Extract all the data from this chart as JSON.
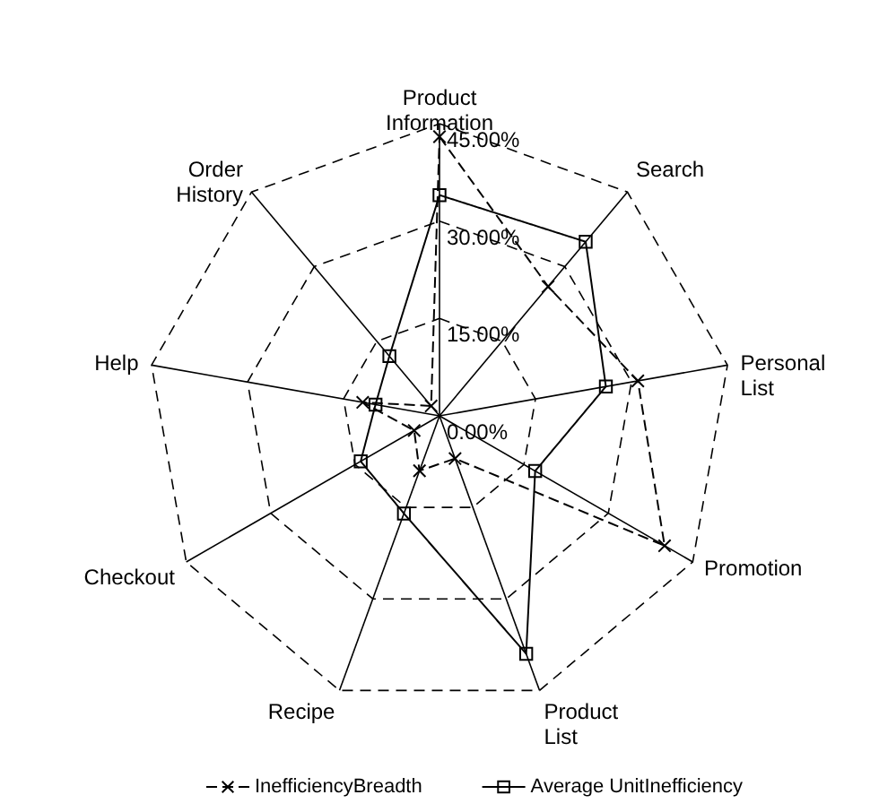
{
  "chart_data": {
    "type": "radar",
    "categories": [
      "Product Information",
      "Search",
      "Personal List",
      "Promotion",
      "Product List",
      "Recipe",
      "Checkout",
      "Help",
      "Order History"
    ],
    "series": [
      {
        "name": "InefficiencyBreadth",
        "color": "#000000",
        "marker": "cross",
        "line_style": "dashed",
        "values": [
          43,
          26,
          31,
          40,
          7,
          9,
          4.5,
          12,
          2
        ]
      },
      {
        "name": "Average UnitInefficiency",
        "color": "#000000",
        "marker": "square",
        "line_style": "solid",
        "values": [
          34,
          35,
          26,
          17,
          39,
          16,
          14,
          10,
          12
        ]
      }
    ],
    "ylim": [
      0,
      45
    ],
    "yticks": [
      {
        "value": 0,
        "label": "0.00%"
      },
      {
        "value": 15,
        "label": "15.00%"
      },
      {
        "value": 30,
        "label": "30.00%"
      },
      {
        "value": 45,
        "label": "45.00%"
      }
    ],
    "grid": true,
    "legend": "bottom"
  }
}
